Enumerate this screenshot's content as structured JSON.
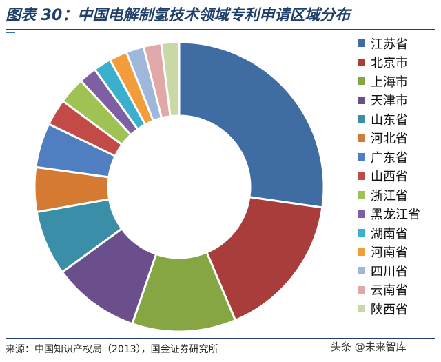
{
  "title": "图表 30：中国电解制氢技术领域专利申请区域分布",
  "source": "来源：中国知识产权局（2013），国金证券研究所",
  "watermark": "头条 @未来智库",
  "chart_data": {
    "type": "pie",
    "donut": true,
    "legend_position": "right",
    "categories": [
      "江苏省",
      "北京市",
      "上海市",
      "天津市",
      "山东省",
      "河北省",
      "广东省",
      "山西省",
      "浙江省",
      "黑龙江省",
      "湖南省",
      "河南省",
      "四川省",
      "云南省",
      "陕西省"
    ],
    "values": [
      27.5,
      16.5,
      11.7,
      9.8,
      7.3,
      5.0,
      5.0,
      3.0,
      3.0,
      2.0,
      2.0,
      2.0,
      2.0,
      2.0,
      2.0
    ],
    "colors": [
      "#3f6da3",
      "#a93d3b",
      "#86a543",
      "#6a4f8c",
      "#3a8ea8",
      "#d57a33",
      "#4f7fc0",
      "#c24a47",
      "#9fc255",
      "#7f5fa3",
      "#3ab0cc",
      "#f29c3a",
      "#9fb7db",
      "#e0a9a7",
      "#c9d9a5"
    ]
  }
}
